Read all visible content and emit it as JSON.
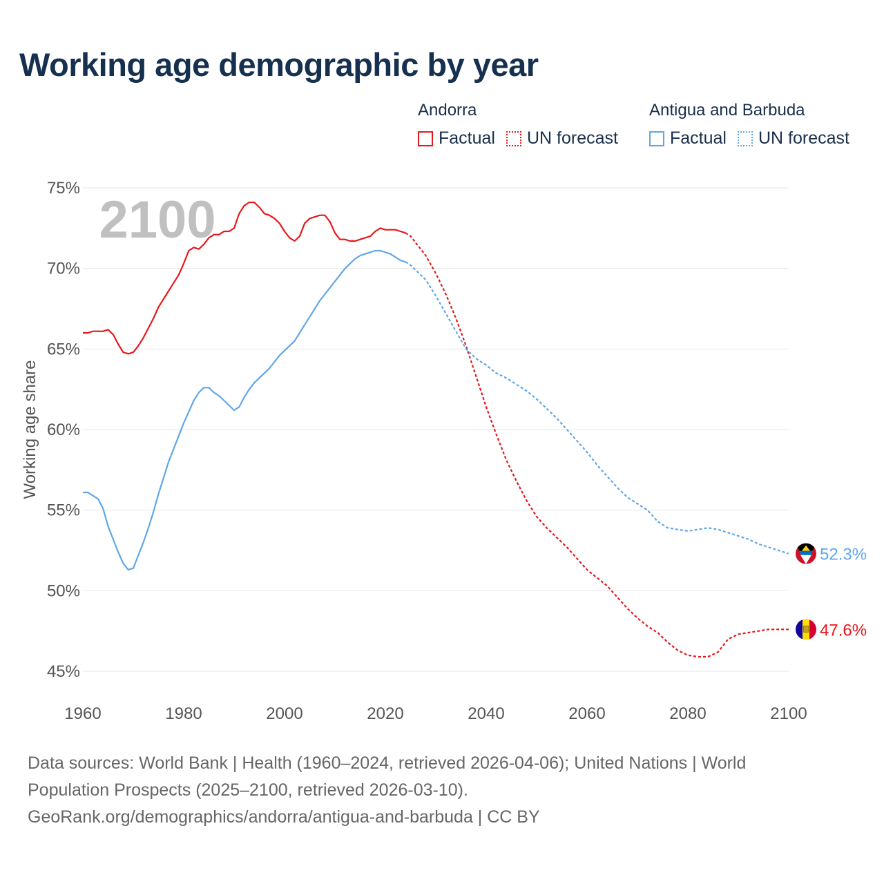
{
  "title": "Working age demographic by year",
  "legend": {
    "groups": [
      {
        "name": "Andorra",
        "color": "#e8161a",
        "factual_label": "Factual",
        "forecast_label": "UN forecast"
      },
      {
        "name": "Antigua and Barbuda",
        "color": "#5fa6e8",
        "factual_label": "Factual",
        "forecast_label": "UN forecast"
      }
    ]
  },
  "footer": {
    "line1": "Data sources: World Bank | Health (1960–2024, retrieved 2026-04-06); United Nations | World",
    "line2": "Population Prospects (2025–2100, retrieved 2026-03-10).",
    "line3": "GeoRank.org/demographics/andorra/antigua-and-barbuda | CC BY"
  },
  "chart_data": {
    "type": "line",
    "title": "Working age demographic by year",
    "ylabel": "Working age share",
    "xlabel": "",
    "year_watermark": "2100",
    "xlim": [
      1960,
      2100
    ],
    "ylim": [
      45,
      75
    ],
    "x_ticks": [
      1960,
      1980,
      2000,
      2020,
      2040,
      2060,
      2080,
      2100
    ],
    "y_ticks": [
      45,
      50,
      55,
      60,
      65,
      70,
      75
    ],
    "y_tick_labels": [
      "45%",
      "50%",
      "55%",
      "60%",
      "65%",
      "70%",
      "75%"
    ],
    "factual_end_year": 2024,
    "series": [
      {
        "name": "Andorra",
        "color": "#e8161a",
        "end_label": "47.6%",
        "flag": "andorra-flag",
        "points": [
          [
            1960,
            66.0
          ],
          [
            1961,
            66.0
          ],
          [
            1962,
            66.1
          ],
          [
            1963,
            66.1
          ],
          [
            1964,
            66.1
          ],
          [
            1965,
            66.2
          ],
          [
            1966,
            65.9
          ],
          [
            1967,
            65.3
          ],
          [
            1968,
            64.8
          ],
          [
            1969,
            64.7
          ],
          [
            1970,
            64.8
          ],
          [
            1971,
            65.2
          ],
          [
            1972,
            65.7
          ],
          [
            1973,
            66.3
          ],
          [
            1974,
            66.9
          ],
          [
            1975,
            67.6
          ],
          [
            1976,
            68.1
          ],
          [
            1977,
            68.6
          ],
          [
            1978,
            69.1
          ],
          [
            1979,
            69.6
          ],
          [
            1980,
            70.3
          ],
          [
            1981,
            71.1
          ],
          [
            1982,
            71.3
          ],
          [
            1983,
            71.2
          ],
          [
            1984,
            71.5
          ],
          [
            1985,
            71.9
          ],
          [
            1986,
            72.1
          ],
          [
            1987,
            72.1
          ],
          [
            1988,
            72.3
          ],
          [
            1989,
            72.3
          ],
          [
            1990,
            72.5
          ],
          [
            1991,
            73.4
          ],
          [
            1992,
            73.9
          ],
          [
            1993,
            74.1
          ],
          [
            1994,
            74.1
          ],
          [
            1995,
            73.8
          ],
          [
            1996,
            73.4
          ],
          [
            1997,
            73.3
          ],
          [
            1998,
            73.1
          ],
          [
            1999,
            72.8
          ],
          [
            2000,
            72.3
          ],
          [
            2001,
            71.9
          ],
          [
            2002,
            71.7
          ],
          [
            2003,
            72.0
          ],
          [
            2004,
            72.8
          ],
          [
            2005,
            73.1
          ],
          [
            2006,
            73.2
          ],
          [
            2007,
            73.3
          ],
          [
            2008,
            73.3
          ],
          [
            2009,
            72.9
          ],
          [
            2010,
            72.2
          ],
          [
            2011,
            71.8
          ],
          [
            2012,
            71.8
          ],
          [
            2013,
            71.7
          ],
          [
            2014,
            71.7
          ],
          [
            2015,
            71.8
          ],
          [
            2016,
            71.9
          ],
          [
            2017,
            72.0
          ],
          [
            2018,
            72.3
          ],
          [
            2019,
            72.5
          ],
          [
            2020,
            72.4
          ],
          [
            2021,
            72.4
          ],
          [
            2022,
            72.4
          ],
          [
            2023,
            72.3
          ],
          [
            2024,
            72.2
          ],
          [
            2025,
            72.0
          ],
          [
            2026,
            71.6
          ],
          [
            2028,
            70.8
          ],
          [
            2030,
            69.7
          ],
          [
            2032,
            68.4
          ],
          [
            2034,
            66.9
          ],
          [
            2036,
            65.2
          ],
          [
            2038,
            63.3
          ],
          [
            2040,
            61.4
          ],
          [
            2042,
            59.7
          ],
          [
            2044,
            58.1
          ],
          [
            2046,
            56.8
          ],
          [
            2048,
            55.6
          ],
          [
            2050,
            54.6
          ],
          [
            2052,
            53.9
          ],
          [
            2054,
            53.3
          ],
          [
            2056,
            52.7
          ],
          [
            2058,
            52.0
          ],
          [
            2060,
            51.3
          ],
          [
            2062,
            50.8
          ],
          [
            2064,
            50.3
          ],
          [
            2066,
            49.6
          ],
          [
            2068,
            48.9
          ],
          [
            2070,
            48.3
          ],
          [
            2072,
            47.8
          ],
          [
            2074,
            47.4
          ],
          [
            2076,
            46.8
          ],
          [
            2078,
            46.3
          ],
          [
            2080,
            46.0
          ],
          [
            2082,
            45.9
          ],
          [
            2084,
            45.9
          ],
          [
            2086,
            46.2
          ],
          [
            2088,
            47.0
          ],
          [
            2090,
            47.3
          ],
          [
            2092,
            47.4
          ],
          [
            2094,
            47.5
          ],
          [
            2096,
            47.6
          ],
          [
            2098,
            47.6
          ],
          [
            2100,
            47.6
          ]
        ]
      },
      {
        "name": "Antigua and Barbuda",
        "color": "#5fa6e8",
        "end_label": "52.3%",
        "flag": "antigua-and-barbuda-flag",
        "points": [
          [
            1960,
            56.1
          ],
          [
            1961,
            56.1
          ],
          [
            1962,
            55.9
          ],
          [
            1963,
            55.7
          ],
          [
            1964,
            55.1
          ],
          [
            1965,
            54.0
          ],
          [
            1966,
            53.2
          ],
          [
            1967,
            52.4
          ],
          [
            1968,
            51.7
          ],
          [
            1969,
            51.3
          ],
          [
            1970,
            51.4
          ],
          [
            1971,
            52.2
          ],
          [
            1972,
            53.0
          ],
          [
            1973,
            53.9
          ],
          [
            1974,
            54.9
          ],
          [
            1975,
            56.0
          ],
          [
            1976,
            57.0
          ],
          [
            1977,
            58.0
          ],
          [
            1978,
            58.8
          ],
          [
            1979,
            59.6
          ],
          [
            1980,
            60.4
          ],
          [
            1981,
            61.1
          ],
          [
            1982,
            61.8
          ],
          [
            1983,
            62.3
          ],
          [
            1984,
            62.6
          ],
          [
            1985,
            62.6
          ],
          [
            1986,
            62.3
          ],
          [
            1987,
            62.1
          ],
          [
            1988,
            61.8
          ],
          [
            1989,
            61.5
          ],
          [
            1990,
            61.2
          ],
          [
            1991,
            61.4
          ],
          [
            1992,
            62.0
          ],
          [
            1993,
            62.5
          ],
          [
            1994,
            62.9
          ],
          [
            1995,
            63.2
          ],
          [
            1996,
            63.5
          ],
          [
            1997,
            63.8
          ],
          [
            1998,
            64.2
          ],
          [
            1999,
            64.6
          ],
          [
            2000,
            64.9
          ],
          [
            2001,
            65.2
          ],
          [
            2002,
            65.5
          ],
          [
            2003,
            66.0
          ],
          [
            2004,
            66.5
          ],
          [
            2005,
            67.0
          ],
          [
            2006,
            67.5
          ],
          [
            2007,
            68.0
          ],
          [
            2008,
            68.4
          ],
          [
            2009,
            68.8
          ],
          [
            2010,
            69.2
          ],
          [
            2011,
            69.6
          ],
          [
            2012,
            70.0
          ],
          [
            2013,
            70.3
          ],
          [
            2014,
            70.6
          ],
          [
            2015,
            70.8
          ],
          [
            2016,
            70.9
          ],
          [
            2017,
            71.0
          ],
          [
            2018,
            71.1
          ],
          [
            2019,
            71.1
          ],
          [
            2020,
            71.0
          ],
          [
            2021,
            70.9
          ],
          [
            2022,
            70.7
          ],
          [
            2023,
            70.5
          ],
          [
            2024,
            70.4
          ],
          [
            2025,
            70.2
          ],
          [
            2026,
            69.9
          ],
          [
            2028,
            69.3
          ],
          [
            2030,
            68.3
          ],
          [
            2032,
            67.2
          ],
          [
            2034,
            66.1
          ],
          [
            2036,
            65.0
          ],
          [
            2038,
            64.4
          ],
          [
            2040,
            64.0
          ],
          [
            2042,
            63.5
          ],
          [
            2044,
            63.2
          ],
          [
            2046,
            62.8
          ],
          [
            2048,
            62.4
          ],
          [
            2050,
            61.9
          ],
          [
            2052,
            61.3
          ],
          [
            2054,
            60.7
          ],
          [
            2056,
            60.0
          ],
          [
            2058,
            59.3
          ],
          [
            2060,
            58.6
          ],
          [
            2062,
            57.8
          ],
          [
            2064,
            57.1
          ],
          [
            2066,
            56.4
          ],
          [
            2068,
            55.8
          ],
          [
            2070,
            55.4
          ],
          [
            2072,
            55.0
          ],
          [
            2074,
            54.3
          ],
          [
            2076,
            53.9
          ],
          [
            2078,
            53.8
          ],
          [
            2080,
            53.7
          ],
          [
            2082,
            53.8
          ],
          [
            2084,
            53.9
          ],
          [
            2086,
            53.8
          ],
          [
            2088,
            53.6
          ],
          [
            2090,
            53.4
          ],
          [
            2092,
            53.2
          ],
          [
            2094,
            52.9
          ],
          [
            2096,
            52.7
          ],
          [
            2098,
            52.5
          ],
          [
            2100,
            52.3
          ]
        ]
      }
    ]
  }
}
